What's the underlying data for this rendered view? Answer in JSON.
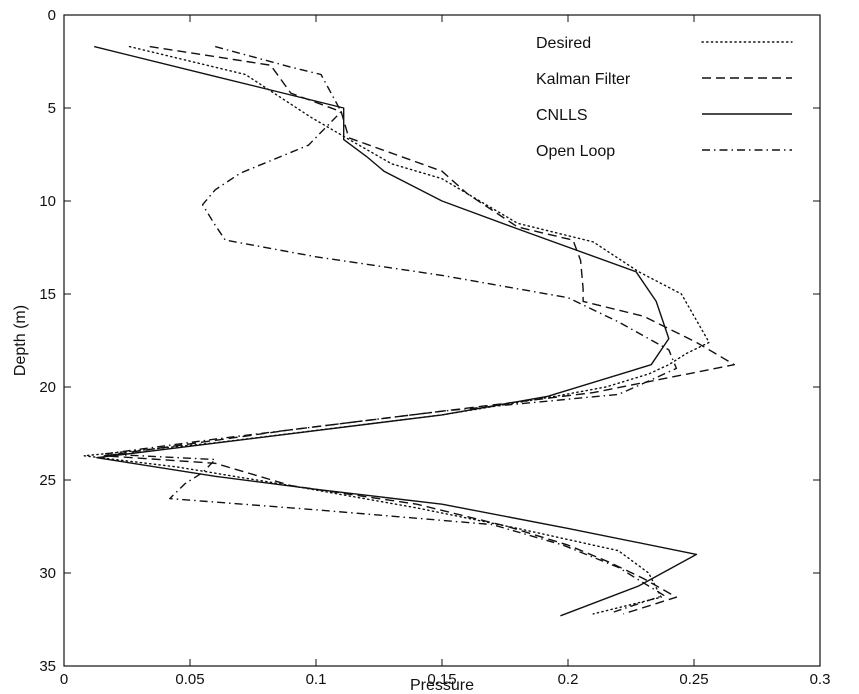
{
  "chart_data": {
    "type": "line",
    "xlabel": "Pressure",
    "ylabel": "Depth (m)",
    "xlim": [
      0,
      0.3
    ],
    "ylim": [
      0,
      35
    ],
    "y_inverted": true,
    "grid": false,
    "legend_position": "top-right",
    "xticks": [
      "0",
      "0.05",
      "0.1",
      "0.15",
      "0.2",
      "0.25",
      "0.3"
    ],
    "yticks": [
      "0",
      "5",
      "10",
      "15",
      "20",
      "25",
      "30",
      "35"
    ],
    "series": [
      {
        "name": "Desired",
        "style": "dotted",
        "points": [
          [
            0.026,
            1.7
          ],
          [
            0.072,
            3.2
          ],
          [
            0.098,
            5.5
          ],
          [
            0.112,
            6.6
          ],
          [
            0.13,
            8.0
          ],
          [
            0.15,
            8.8
          ],
          [
            0.165,
            10.0
          ],
          [
            0.18,
            11.2
          ],
          [
            0.21,
            12.2
          ],
          [
            0.228,
            13.8
          ],
          [
            0.245,
            15.0
          ],
          [
            0.256,
            17.6
          ],
          [
            0.247,
            18.2
          ],
          [
            0.24,
            18.8
          ],
          [
            0.232,
            19.3
          ],
          [
            0.215,
            20.0
          ],
          [
            0.195,
            20.5
          ],
          [
            0.15,
            21.5
          ],
          [
            0.06,
            23.0
          ],
          [
            0.008,
            23.7
          ],
          [
            0.045,
            24.3
          ],
          [
            0.09,
            25.3
          ],
          [
            0.14,
            26.5
          ],
          [
            0.18,
            27.6
          ],
          [
            0.22,
            28.8
          ],
          [
            0.232,
            30.0
          ],
          [
            0.237,
            31.3
          ],
          [
            0.21,
            32.2
          ]
        ]
      },
      {
        "name": "Kalman Filter",
        "style": "dashed",
        "points": [
          [
            0.034,
            1.7
          ],
          [
            0.082,
            2.7
          ],
          [
            0.09,
            4.2
          ],
          [
            0.11,
            5.2
          ],
          [
            0.113,
            6.6
          ],
          [
            0.15,
            8.4
          ],
          [
            0.16,
            9.6
          ],
          [
            0.18,
            11.4
          ],
          [
            0.202,
            12.1
          ],
          [
            0.205,
            13.2
          ],
          [
            0.206,
            14.7
          ],
          [
            0.206,
            15.4
          ],
          [
            0.23,
            16.2
          ],
          [
            0.251,
            17.6
          ],
          [
            0.266,
            18.8
          ],
          [
            0.21,
            20.3
          ],
          [
            0.15,
            21.3
          ],
          [
            0.09,
            22.3
          ],
          [
            0.016,
            23.7
          ],
          [
            0.06,
            24.1
          ],
          [
            0.09,
            25.3
          ],
          [
            0.14,
            26.3
          ],
          [
            0.176,
            27.5
          ],
          [
            0.2,
            28.5
          ],
          [
            0.216,
            29.4
          ],
          [
            0.23,
            30.3
          ],
          [
            0.243,
            31.3
          ],
          [
            0.222,
            32.2
          ]
        ]
      },
      {
        "name": "CNLLS",
        "style": "solid",
        "points": [
          [
            0.012,
            1.7
          ],
          [
            0.06,
            3.3
          ],
          [
            0.111,
            5.0
          ],
          [
            0.111,
            6.7
          ],
          [
            0.12,
            7.6
          ],
          [
            0.127,
            8.4
          ],
          [
            0.15,
            10.0
          ],
          [
            0.18,
            11.5
          ],
          [
            0.227,
            13.8
          ],
          [
            0.235,
            15.4
          ],
          [
            0.24,
            17.4
          ],
          [
            0.233,
            18.8
          ],
          [
            0.192,
            20.5
          ],
          [
            0.15,
            21.5
          ],
          [
            0.055,
            23.1
          ],
          [
            0.013,
            23.8
          ],
          [
            0.06,
            24.8
          ],
          [
            0.1,
            25.5
          ],
          [
            0.15,
            26.3
          ],
          [
            0.2,
            27.6
          ],
          [
            0.251,
            29.0
          ],
          [
            0.228,
            30.7
          ],
          [
            0.197,
            32.3
          ]
        ]
      },
      {
        "name": "Open Loop",
        "style": "dash-dot",
        "points": [
          [
            0.06,
            1.7
          ],
          [
            0.09,
            2.8
          ],
          [
            0.102,
            3.2
          ],
          [
            0.11,
            5.2
          ],
          [
            0.097,
            7.0
          ],
          [
            0.07,
            8.5
          ],
          [
            0.06,
            9.4
          ],
          [
            0.055,
            10.2
          ],
          [
            0.06,
            11.3
          ],
          [
            0.064,
            12.1
          ],
          [
            0.1,
            13.0
          ],
          [
            0.15,
            14.0
          ],
          [
            0.2,
            15.2
          ],
          [
            0.22,
            16.5
          ],
          [
            0.24,
            18.0
          ],
          [
            0.243,
            19.0
          ],
          [
            0.23,
            19.8
          ],
          [
            0.22,
            20.4
          ],
          [
            0.15,
            21.3
          ],
          [
            0.06,
            22.8
          ],
          [
            0.016,
            23.6
          ],
          [
            0.06,
            23.9
          ],
          [
            0.055,
            24.6
          ],
          [
            0.048,
            25.2
          ],
          [
            0.042,
            26.0
          ],
          [
            0.1,
            26.6
          ],
          [
            0.17,
            27.4
          ],
          [
            0.198,
            28.5
          ],
          [
            0.22,
            29.7
          ],
          [
            0.238,
            31.2
          ],
          [
            0.218,
            32.1
          ]
        ]
      }
    ]
  },
  "colors": {
    "line": "#111111",
    "background": "#ffffff"
  }
}
